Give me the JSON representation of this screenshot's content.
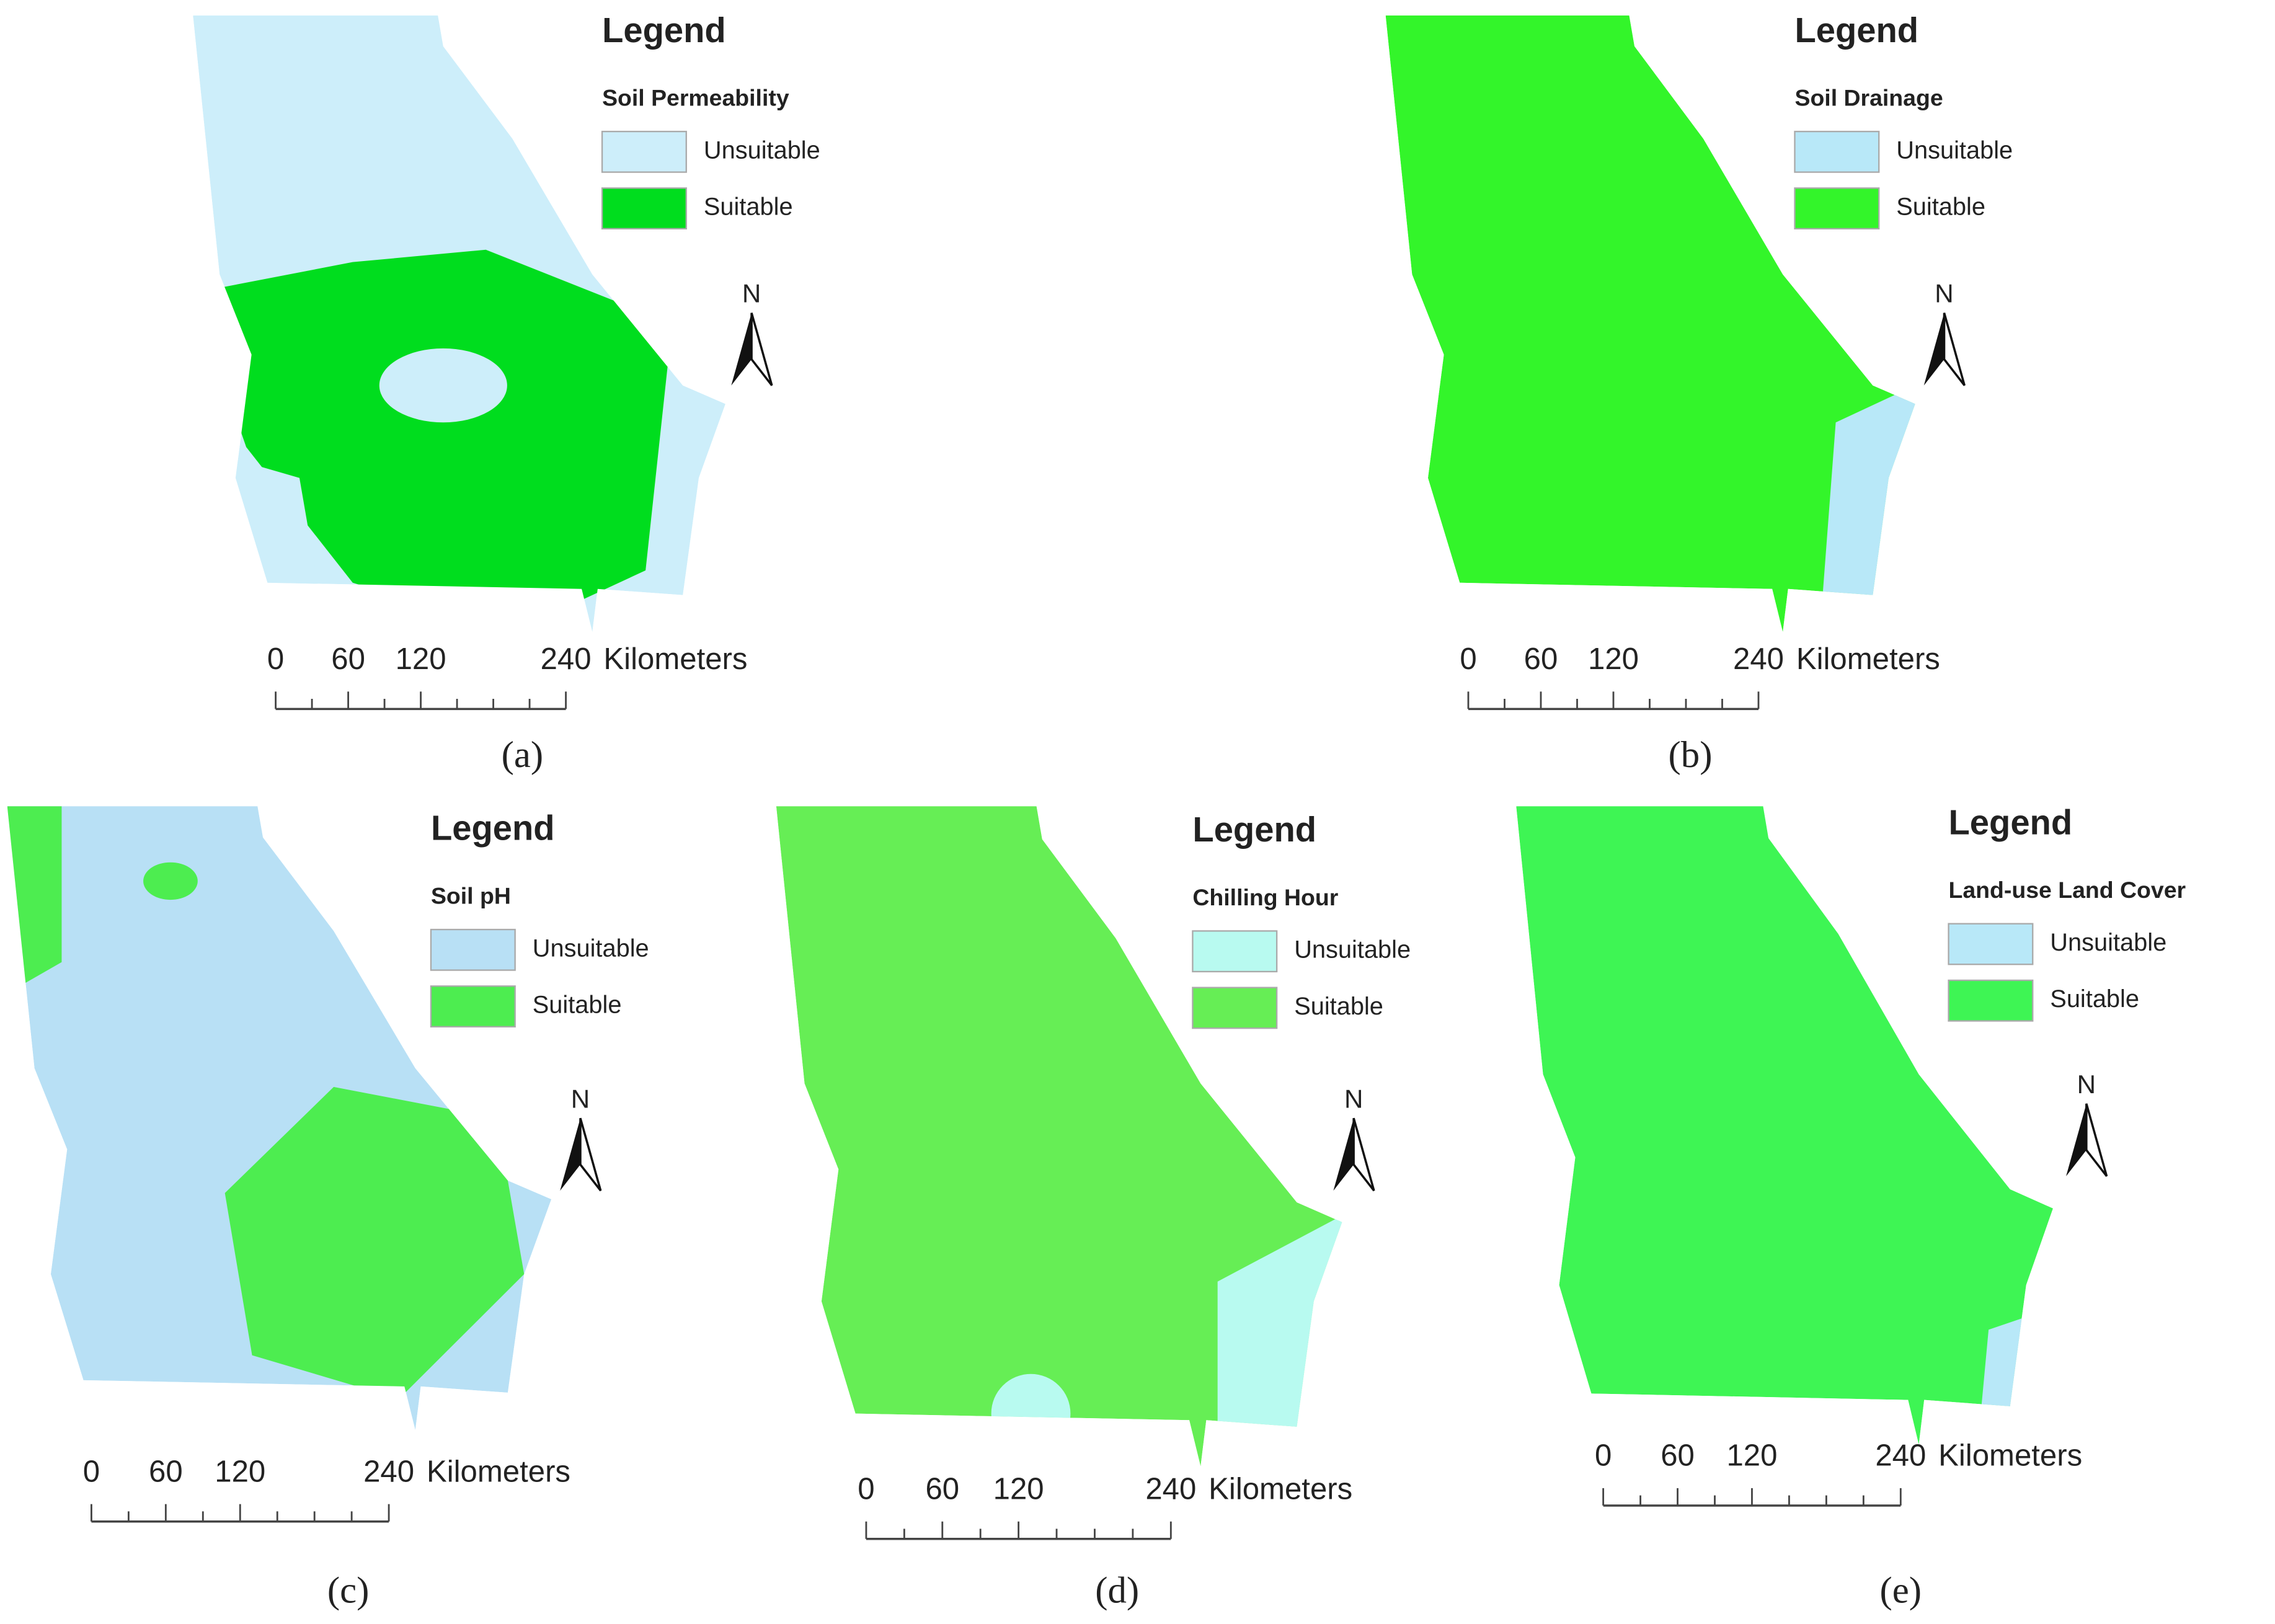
{
  "panels": [
    {
      "legend_title": "Legend",
      "layer": "Soil Permeability",
      "items": [
        {
          "label": "Unsuitable",
          "color": "#cdeefa"
        },
        {
          "label": "Suitable",
          "color": "#00dd1e"
        }
      ],
      "scale": {
        "ticks": [
          "0",
          "60",
          "120",
          "240"
        ],
        "unit": "Kilometers"
      },
      "north": "N",
      "caption": "(a)"
    },
    {
      "legend_title": "Legend",
      "layer": "Soil Drainage",
      "items": [
        {
          "label": "Unsuitable",
          "color": "#b8e8f8"
        },
        {
          "label": "Suitable",
          "color": "#33f52a"
        }
      ],
      "scale": {
        "ticks": [
          "0",
          "60",
          "120",
          "240"
        ],
        "unit": "Kilometers"
      },
      "north": "N",
      "caption": "(b)"
    },
    {
      "legend_title": "Legend",
      "layer": "Soil pH",
      "items": [
        {
          "label": "Unsuitable",
          "color": "#b8e0f5"
        },
        {
          "label": "Suitable",
          "color": "#4ded50"
        }
      ],
      "scale": {
        "ticks": [
          "0",
          "60",
          "120",
          "240"
        ],
        "unit": "Kilometers"
      },
      "north": "N",
      "caption": "(c)"
    },
    {
      "legend_title": "Legend",
      "layer": "Chilling Hour",
      "items": [
        {
          "label": "Unsuitable",
          "color": "#b8faf0"
        },
        {
          "label": "Suitable",
          "color": "#66ee55"
        }
      ],
      "scale": {
        "ticks": [
          "0",
          "60",
          "120",
          "240"
        ],
        "unit": "Kilometers"
      },
      "north": "N",
      "caption": "(d)"
    },
    {
      "legend_title": "Legend",
      "layer": "Land-use Land Cover",
      "items": [
        {
          "label": "Unsuitable",
          "color": "#b8e8f8"
        },
        {
          "label": "Suitable",
          "color": "#3ef554"
        }
      ],
      "scale": {
        "ticks": [
          "0",
          "60",
          "120",
          "240"
        ],
        "unit": "Kilometers"
      },
      "north": "N",
      "caption": "(e)"
    }
  ]
}
